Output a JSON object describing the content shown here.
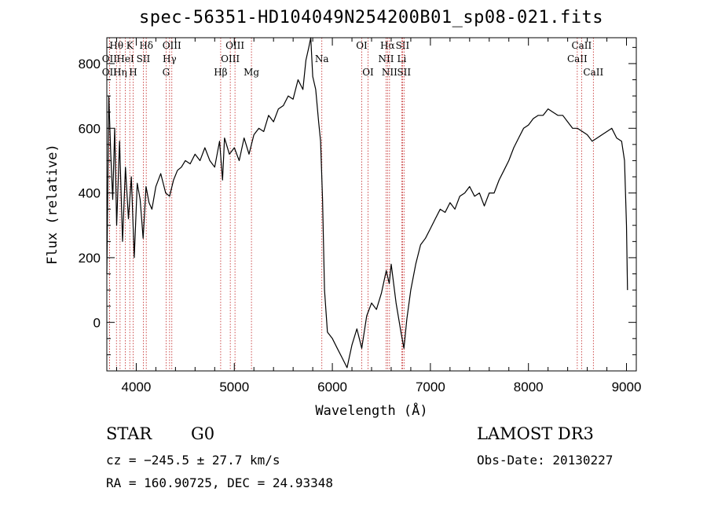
{
  "title": "spec-56351-HD104049N254200B01_sp08-021.fits",
  "footer": {
    "class_label": "STAR",
    "subclass_label": "G0",
    "survey_label": "LAMOST DR3",
    "cz_text": "cz = −245.5 ± 27.7 km/s",
    "obs_date_text": "Obs-Date: 20130227",
    "radec_text": "RA = 160.90725, DEC =  24.93348"
  },
  "chart_data": {
    "type": "line",
    "title": "spec-56351-HD104049N254200B01_sp08-021.fits",
    "xlabel": "Wavelength (Å)",
    "ylabel": "Flux (relative)",
    "xlim": [
      3700,
      9100
    ],
    "ylim": [
      -150,
      880
    ],
    "xticks": [
      4000,
      5000,
      6000,
      7000,
      8000,
      9000
    ],
    "yticks": [
      0,
      200,
      400,
      600,
      800
    ],
    "grid": false,
    "series": [
      {
        "x": [
          3700,
          3720,
          3740,
          3760,
          3780,
          3800,
          3830,
          3860,
          3890,
          3920,
          3950,
          3980,
          4010,
          4040,
          4070,
          4100,
          4130,
          4160,
          4200,
          4250,
          4300,
          4340,
          4380,
          4420,
          4460,
          4500,
          4550,
          4600,
          4650,
          4700,
          4750,
          4800,
          4850,
          4880,
          4900,
          4950,
          5000,
          5050,
          5100,
          5150,
          5200,
          5250,
          5300,
          5350,
          5400,
          5450,
          5500,
          5550,
          5600,
          5650,
          5700,
          5730,
          5760,
          5780,
          5800,
          5830,
          5860,
          5880,
          5900,
          5920,
          5950,
          6000,
          6050,
          6100,
          6150,
          6200,
          6250,
          6300,
          6350,
          6400,
          6450,
          6500,
          6550,
          6580,
          6600,
          6650,
          6700,
          6730,
          6760,
          6800,
          6850,
          6900,
          6950,
          7000,
          7050,
          7100,
          7150,
          7200,
          7250,
          7300,
          7350,
          7400,
          7450,
          7500,
          7550,
          7600,
          7650,
          7700,
          7750,
          7800,
          7850,
          7900,
          7950,
          8000,
          8050,
          8100,
          8150,
          8200,
          8250,
          8300,
          8350,
          8400,
          8450,
          8500,
          8550,
          8600,
          8650,
          8700,
          8750,
          8800,
          8850,
          8900,
          8950,
          8980,
          9000,
          9010
        ],
        "y": [
          150,
          700,
          520,
          380,
          600,
          300,
          560,
          250,
          480,
          320,
          450,
          200,
          430,
          380,
          260,
          420,
          370,
          350,
          420,
          460,
          400,
          390,
          440,
          470,
          480,
          500,
          490,
          520,
          500,
          540,
          500,
          480,
          560,
          440,
          570,
          520,
          540,
          500,
          570,
          520,
          580,
          600,
          590,
          640,
          620,
          660,
          670,
          700,
          690,
          750,
          720,
          810,
          850,
          880,
          760,
          720,
          620,
          560,
          380,
          100,
          -30,
          -50,
          -80,
          -110,
          -140,
          -70,
          -20,
          -80,
          20,
          60,
          40,
          90,
          160,
          120,
          180,
          60,
          -30,
          -80,
          10,
          100,
          180,
          240,
          260,
          290,
          320,
          350,
          340,
          370,
          350,
          390,
          400,
          420,
          390,
          400,
          360,
          400,
          400,
          440,
          470,
          500,
          540,
          570,
          600,
          610,
          630,
          640,
          640,
          660,
          650,
          640,
          640,
          620,
          600,
          600,
          590,
          580,
          560,
          570,
          580,
          590,
          600,
          570,
          560,
          500,
          300,
          100
        ]
      }
    ],
    "lines": [
      {
        "label": "OII",
        "x": 3727,
        "row": 2
      },
      {
        "label": "Hθ",
        "x": 3798,
        "row": 0
      },
      {
        "label": "OII",
        "x": 3727,
        "row": 1
      },
      {
        "label": "Hη",
        "x": 3835,
        "row": 2
      },
      {
        "label": "HeI",
        "x": 3889,
        "row": 1
      },
      {
        "label": "K",
        "x": 3934,
        "row": 0
      },
      {
        "label": "H",
        "x": 3968,
        "row": 2
      },
      {
        "label": "SII",
        "x": 4072,
        "row": 1
      },
      {
        "label": "Hδ",
        "x": 4102,
        "row": 0
      },
      {
        "label": "G",
        "x": 4304,
        "row": 2
      },
      {
        "label": "Hγ",
        "x": 4340,
        "row": 1
      },
      {
        "label": "OIII",
        "x": 4363,
        "row": 0
      },
      {
        "label": "Hβ",
        "x": 4861,
        "row": 2
      },
      {
        "label": "OIII",
        "x": 4959,
        "row": 1
      },
      {
        "label": "OIII",
        "x": 5007,
        "row": 0
      },
      {
        "label": "Mg",
        "x": 5175,
        "row": 2
      },
      {
        "label": "Na",
        "x": 5893,
        "row": 1
      },
      {
        "label": "OI",
        "x": 6300,
        "row": 0
      },
      {
        "label": "OI",
        "x": 6364,
        "row": 2
      },
      {
        "label": "NII",
        "x": 6548,
        "row": 1
      },
      {
        "label": "Hα",
        "x": 6563,
        "row": 0
      },
      {
        "label": "NII",
        "x": 6583,
        "row": 2
      },
      {
        "label": "Li",
        "x": 6708,
        "row": 1
      },
      {
        "label": "SII",
        "x": 6716,
        "row": 0
      },
      {
        "label": "SII",
        "x": 6731,
        "row": 2
      },
      {
        "label": "CaII",
        "x": 8498,
        "row": 1
      },
      {
        "label": "CaII",
        "x": 8542,
        "row": 0
      },
      {
        "label": "CaII",
        "x": 8662,
        "row": 2
      }
    ]
  }
}
